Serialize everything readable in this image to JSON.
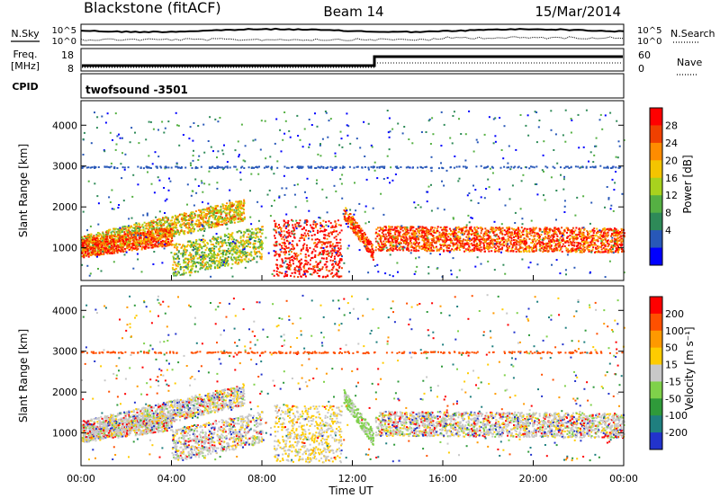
{
  "header": {
    "title": "Blackstone (fitACF)",
    "beam": "Beam 14",
    "date": "15/Mar/2014"
  },
  "top_panels": {
    "nsky_label": "N.Sky",
    "nsky_ticks": [
      "10^5",
      "10^0"
    ],
    "nsearch_label": "N.Search",
    "nsearch_ticks": [
      "10^5",
      "10^0"
    ],
    "freq_label": "Freq.",
    "freq_unit": "[MHz]",
    "freq_ticks": [
      "18",
      "8"
    ],
    "nave_label": "Nave",
    "nave_ticks": [
      "60",
      "0"
    ],
    "cpid_label": "CPID",
    "cpid_value": "twofsound  -3501"
  },
  "chart_data": [
    {
      "type": "heatmap",
      "name": "power",
      "ylabel": "Slant Range [km]",
      "ytick_labels": [
        "1000",
        "2000",
        "3000",
        "4000"
      ],
      "yticks": [
        1000,
        2000,
        3000,
        4000
      ],
      "ylim": [
        200,
        4600
      ],
      "xlim": [
        0,
        24
      ],
      "colorbar_label": "Power [dB]",
      "colorbar_ticks": [
        "28",
        "24",
        "20",
        "16",
        "12",
        "8",
        "4"
      ],
      "colorbar_colors": [
        "#0000ff",
        "#2858b8",
        "#2e8a58",
        "#55b043",
        "#a8d21e",
        "#f4c400",
        "#ff8c00",
        "#f04000",
        "#ff0000"
      ],
      "bands": [
        {
          "start": 0.0,
          "end": 7.2,
          "r0": 1050,
          "r1": 1950,
          "width": 260,
          "color_idx": 5
        },
        {
          "start": 0.0,
          "end": 4.0,
          "r0": 1000,
          "r1": 1300,
          "width": 220,
          "color_idx": 7
        },
        {
          "start": 4.0,
          "end": 8.0,
          "r0": 700,
          "r1": 1150,
          "width": 400,
          "color_idx": 4
        },
        {
          "start": 8.5,
          "end": 11.5,
          "r0": 1000,
          "r1": 1000,
          "width": 700,
          "color_idx": 8
        },
        {
          "start": 11.6,
          "end": 12.9,
          "r0": 1900,
          "r1": 900,
          "width": 180,
          "color_idx": 7
        },
        {
          "start": 13.0,
          "end": 24.0,
          "r0": 1250,
          "r1": 1200,
          "width": 300,
          "color_idx": 7
        }
      ]
    },
    {
      "type": "heatmap",
      "name": "velocity",
      "ylabel": "Slant Range [km]",
      "ytick_labels": [
        "1000",
        "2000",
        "3000",
        "4000"
      ],
      "yticks": [
        1000,
        2000,
        3000,
        4000
      ],
      "ylim": [
        200,
        4600
      ],
      "xlim": [
        0,
        24
      ],
      "xtick_labels": [
        "00:00",
        "04:00",
        "08:00",
        "12:00",
        "16:00",
        "20:00",
        "00:00"
      ],
      "xticks": [
        0,
        4,
        8,
        12,
        16,
        20,
        24
      ],
      "xlabel": "Time UT",
      "colorbar_label": "Velocity [m s⁻¹]",
      "colorbar_ticks": [
        "200",
        "100",
        "50",
        "15",
        "-15",
        "-50",
        "-100",
        "-200"
      ],
      "colorbar_colors": [
        "#2233cc",
        "#1f7f7f",
        "#2f9a3a",
        "#7fd14a",
        "#c8c8c8",
        "#ffcc00",
        "#ff9900",
        "#ff5000",
        "#ff0000"
      ]
    }
  ]
}
